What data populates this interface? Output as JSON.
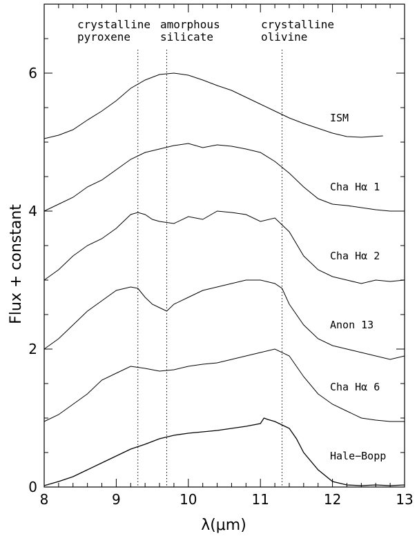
{
  "chart_data": {
    "type": "line",
    "title": "",
    "xlabel": "λ(μm)",
    "ylabel": "Flux + constant",
    "xlim": [
      8,
      13
    ],
    "ylim": [
      0,
      7
    ],
    "xticks": [
      8,
      9,
      10,
      11,
      12,
      13
    ],
    "yticks": [
      0,
      2,
      4,
      6
    ],
    "grid": false,
    "legend": "none",
    "reference_lines": [
      {
        "x": 9.3,
        "label": [
          "crystalline",
          "pyroxene"
        ]
      },
      {
        "x": 9.7,
        "label": [
          "amorphous",
          "silicate"
        ]
      },
      {
        "x": 11.3,
        "label": [
          "crystalline",
          "olivine"
        ]
      }
    ],
    "series": [
      {
        "name": "ISM",
        "x": [
          8.0,
          8.2,
          8.4,
          8.6,
          8.8,
          9.0,
          9.2,
          9.4,
          9.6,
          9.8,
          10.0,
          10.2,
          10.4,
          10.6,
          10.8,
          11.0,
          11.2,
          11.4,
          11.6,
          11.8,
          12.0,
          12.2,
          12.4,
          12.7
        ],
        "y": [
          5.05,
          5.1,
          5.18,
          5.32,
          5.45,
          5.6,
          5.78,
          5.9,
          5.98,
          6.0,
          5.97,
          5.9,
          5.82,
          5.75,
          5.65,
          5.55,
          5.45,
          5.35,
          5.27,
          5.2,
          5.13,
          5.08,
          5.07,
          5.09
        ]
      },
      {
        "name": "Cha Hα 1",
        "x": [
          8.0,
          8.2,
          8.4,
          8.6,
          8.8,
          9.0,
          9.2,
          9.4,
          9.6,
          9.8,
          10.0,
          10.2,
          10.4,
          10.6,
          10.8,
          11.0,
          11.2,
          11.4,
          11.6,
          11.8,
          12.0,
          12.2,
          12.4,
          12.6,
          12.8,
          13.0
        ],
        "y": [
          4.0,
          4.1,
          4.2,
          4.35,
          4.45,
          4.6,
          4.75,
          4.85,
          4.9,
          4.95,
          4.98,
          4.92,
          4.96,
          4.94,
          4.9,
          4.85,
          4.72,
          4.55,
          4.35,
          4.18,
          4.1,
          4.08,
          4.05,
          4.02,
          4.0,
          4.0
        ]
      },
      {
        "name": "Cha Hα 2",
        "x": [
          8.0,
          8.2,
          8.4,
          8.6,
          8.8,
          9.0,
          9.2,
          9.3,
          9.4,
          9.5,
          9.6,
          9.8,
          10.0,
          10.2,
          10.4,
          10.6,
          10.8,
          11.0,
          11.2,
          11.4,
          11.6,
          11.8,
          12.0,
          12.2,
          12.4,
          12.6,
          12.8,
          13.0
        ],
        "y": [
          3.0,
          3.15,
          3.35,
          3.5,
          3.6,
          3.75,
          3.95,
          3.98,
          3.95,
          3.88,
          3.85,
          3.82,
          3.92,
          3.88,
          4.0,
          3.98,
          3.95,
          3.85,
          3.9,
          3.7,
          3.35,
          3.15,
          3.05,
          3.0,
          2.95,
          3.0,
          2.98,
          3.0
        ]
      },
      {
        "name": "Anon 13",
        "x": [
          8.0,
          8.2,
          8.4,
          8.6,
          8.8,
          9.0,
          9.2,
          9.3,
          9.4,
          9.5,
          9.6,
          9.7,
          9.8,
          10.0,
          10.2,
          10.4,
          10.6,
          10.8,
          11.0,
          11.2,
          11.3,
          11.4,
          11.6,
          11.8,
          12.0,
          12.2,
          12.4,
          12.6,
          12.8,
          13.0
        ],
        "y": [
          2.0,
          2.15,
          2.35,
          2.55,
          2.7,
          2.85,
          2.9,
          2.88,
          2.75,
          2.65,
          2.6,
          2.55,
          2.65,
          2.75,
          2.85,
          2.9,
          2.95,
          3.0,
          3.0,
          2.95,
          2.88,
          2.65,
          2.35,
          2.15,
          2.05,
          2.0,
          1.95,
          1.9,
          1.85,
          1.9
        ]
      },
      {
        "name": "Cha Hα 6",
        "x": [
          8.0,
          8.2,
          8.4,
          8.6,
          8.8,
          9.0,
          9.2,
          9.4,
          9.6,
          9.8,
          10.0,
          10.2,
          10.4,
          10.6,
          10.8,
          11.0,
          11.2,
          11.4,
          11.6,
          11.8,
          12.0,
          12.2,
          12.4,
          12.6,
          12.8,
          13.0
        ],
        "y": [
          0.95,
          1.05,
          1.2,
          1.35,
          1.55,
          1.65,
          1.75,
          1.72,
          1.68,
          1.7,
          1.75,
          1.78,
          1.8,
          1.85,
          1.9,
          1.95,
          2.0,
          1.9,
          1.6,
          1.35,
          1.2,
          1.1,
          1.0,
          0.97,
          0.95,
          0.95
        ]
      },
      {
        "name": "Hale−Bopp",
        "x": [
          8.0,
          8.2,
          8.4,
          8.6,
          8.8,
          9.0,
          9.2,
          9.4,
          9.6,
          9.8,
          10.0,
          10.2,
          10.4,
          10.6,
          10.8,
          11.0,
          11.05,
          11.1,
          11.2,
          11.3,
          11.4,
          11.5,
          11.6,
          11.8,
          12.0,
          12.2,
          12.4,
          12.6,
          12.8,
          13.0
        ],
        "y": [
          0.02,
          0.08,
          0.15,
          0.25,
          0.35,
          0.45,
          0.55,
          0.62,
          0.7,
          0.75,
          0.78,
          0.8,
          0.82,
          0.85,
          0.88,
          0.92,
          1.0,
          0.98,
          0.95,
          0.9,
          0.85,
          0.7,
          0.5,
          0.25,
          0.08,
          0.03,
          0.02,
          0.03,
          0.02,
          0.03
        ]
      }
    ]
  }
}
